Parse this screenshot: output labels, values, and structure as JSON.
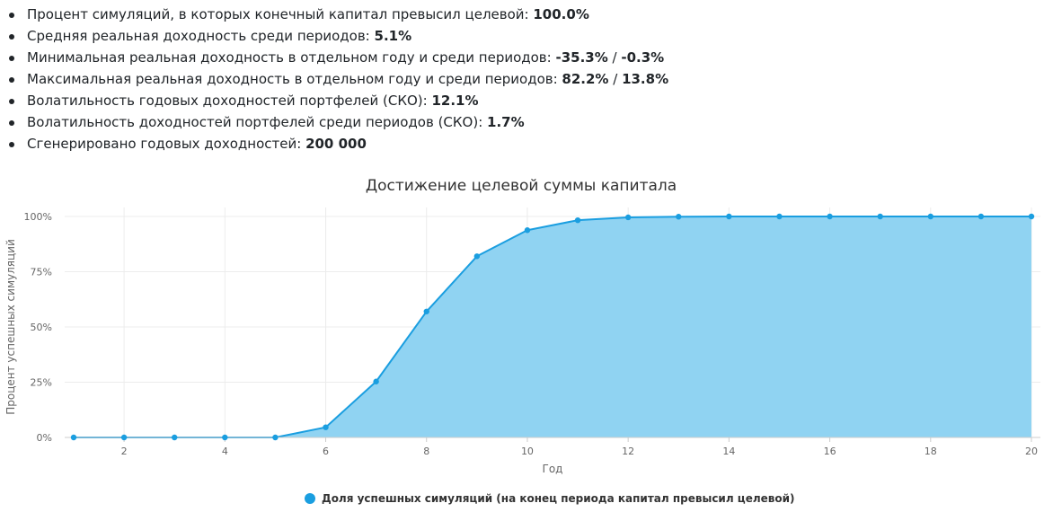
{
  "stats": [
    {
      "label": "Процент симуляций, в которых конечный капитал превысил целевой: ",
      "v1": "100.0%",
      "sep": "",
      "v2": ""
    },
    {
      "label": "Средняя реальная доходность среди периодов: ",
      "v1": "5.1%",
      "sep": "",
      "v2": ""
    },
    {
      "label": "Минимальная реальная доходность в отдельном году и среди периодов: ",
      "v1": "-35.3%",
      "sep": " / ",
      "v2": "-0.3%"
    },
    {
      "label": "Максимальная реальная доходность в отдельном году и среди периодов: ",
      "v1": "82.2%",
      "sep": " / ",
      "v2": "13.8%"
    },
    {
      "label": "Волатильность годовых доходностей портфелей (СКО): ",
      "v1": "12.1%",
      "sep": "",
      "v2": ""
    },
    {
      "label": "Волатильность доходностей портфелей среди периодов (СКО): ",
      "v1": "1.7%",
      "sep": "",
      "v2": ""
    },
    {
      "label": "Сгенерировано годовых доходностей: ",
      "v1": "200 000",
      "sep": "",
      "v2": ""
    }
  ],
  "colors": {
    "line": "#1a9ee0",
    "area": "#90d3f2",
    "grid": "#ececec",
    "axis": "#cccccc"
  },
  "chart_data": {
    "type": "area",
    "title": "Достижение целевой суммы капитала",
    "xlabel": "Год",
    "ylabel": "Процент успешных симуляций",
    "x": [
      1,
      2,
      3,
      4,
      5,
      6,
      7,
      8,
      9,
      10,
      11,
      12,
      13,
      14,
      15,
      16,
      17,
      18,
      19,
      20
    ],
    "series": [
      {
        "name": "Доля успешных симуляций (на конец периода капитал превысил целевой)",
        "values": [
          0,
          0,
          0,
          0,
          0,
          4.6,
          25.3,
          57.0,
          82.0,
          93.8,
          98.3,
          99.6,
          99.9,
          100,
          100,
          100,
          100,
          100,
          100,
          100
        ]
      }
    ],
    "xlim": [
      1,
      20
    ],
    "ylim": [
      0,
      100
    ],
    "x_ticks": [
      2,
      4,
      6,
      8,
      10,
      12,
      14,
      16,
      18,
      20
    ],
    "x_tick_labels": [
      "2",
      "4",
      "6",
      "8",
      "10",
      "12",
      "14",
      "16",
      "18",
      "20"
    ],
    "y_ticks": [
      0,
      25,
      50,
      75,
      100
    ],
    "y_tick_labels": [
      "0%",
      "25%",
      "50%",
      "75%",
      "100%"
    ],
    "grid": true,
    "legend_position": "bottom-center"
  }
}
